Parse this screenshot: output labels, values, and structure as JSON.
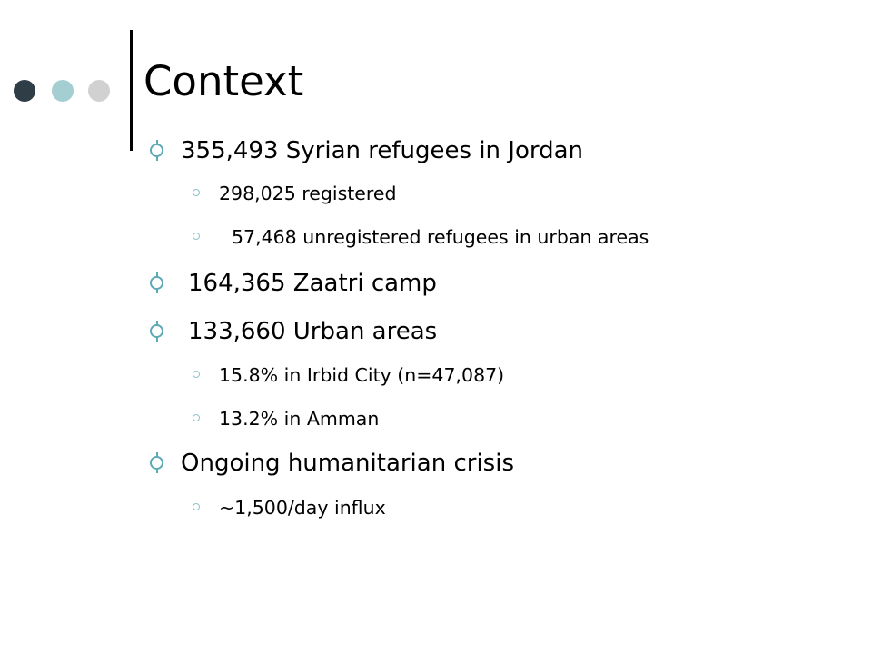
{
  "slide": {
    "title": "Context",
    "bullets": [
      {
        "text": "355,493 Syrian refugees in Jordan",
        "sub": [
          "298,025 registered",
          "57,468 unregistered refugees in urban areas"
        ]
      },
      {
        "text": "164,365 Zaatri camp",
        "sub": []
      },
      {
        "text": "133,660 Urban areas",
        "sub": [
          "15.8% in Irbid City (n=47,087)",
          "13.2% in Amman"
        ]
      },
      {
        "text": "Ongoing humanitarian crisis",
        "sub": [
          "~1,500/day influx"
        ]
      }
    ]
  }
}
